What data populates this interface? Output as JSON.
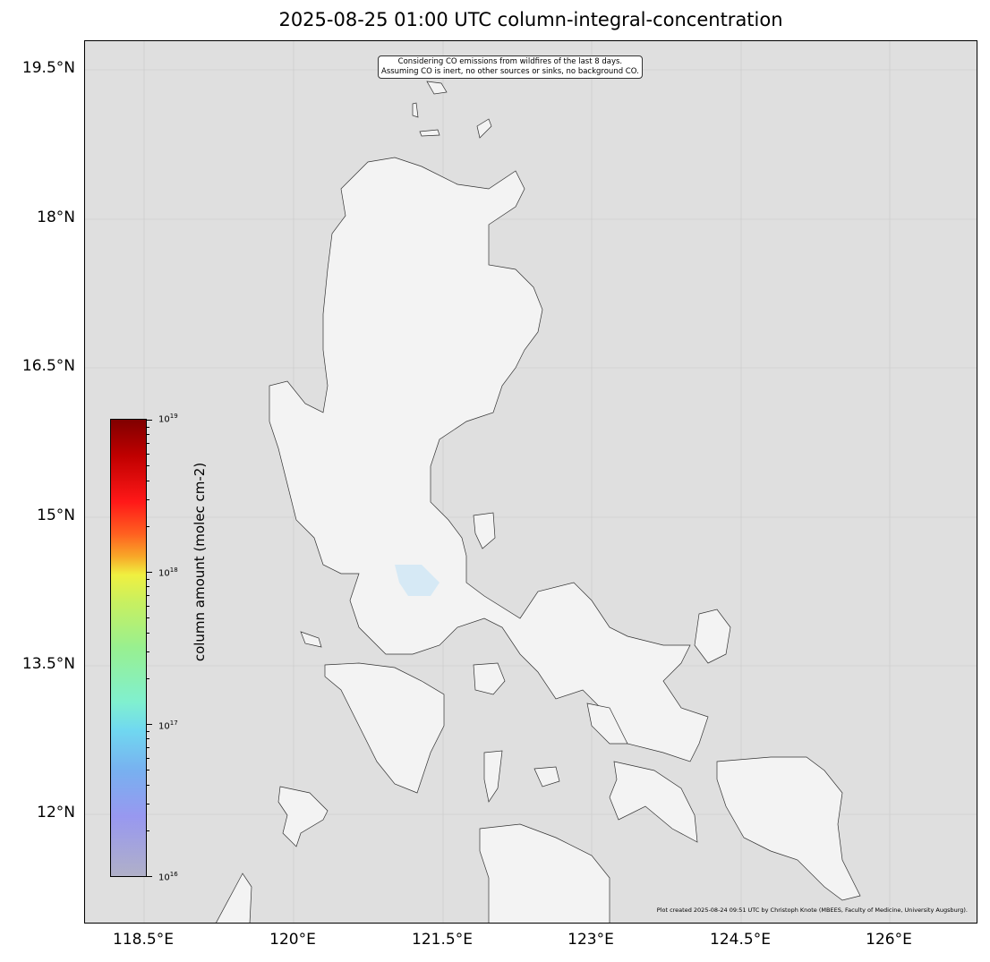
{
  "title": "2025-08-25 01:00 UTC column-integral-concentration",
  "annotation": {
    "line1": "Considering CO emissions from wildfires of the last 8 days.",
    "line2": "Assuming CO is inert, no other sources or sinks, no background CO."
  },
  "credit": "Plot created 2025-08-24 09:51 UTC by Christoph Knote (MBEES, Faculty of Medicine, University Augsburg).",
  "lat_ticks": [
    "19.5°N",
    "18°N",
    "16.5°N",
    "15°N",
    "13.5°N",
    "12°N"
  ],
  "lon_ticks": [
    "118.5°E",
    "120°E",
    "121.5°E",
    "123°E",
    "124.5°E",
    "126°E"
  ],
  "colorbar": {
    "label": "column amount (molec cm-2)",
    "scale": "log",
    "range": [
      "1e16",
      "1e19"
    ],
    "ticks": [
      {
        "base": "10",
        "exp": "19"
      },
      {
        "base": "10",
        "exp": "18"
      },
      {
        "base": "10",
        "exp": "17"
      },
      {
        "base": "10",
        "exp": "16"
      }
    ],
    "colormap": [
      "#800000",
      "#ff1818",
      "#f8a828",
      "#f0f040",
      "#98f090",
      "#80f0d0",
      "#78b0f0",
      "#9898f0",
      "#b0b0c8"
    ]
  },
  "colors": {
    "ocean": "#dfdfdf",
    "land": "#f3f3f3",
    "water": "#d6e9f5"
  }
}
